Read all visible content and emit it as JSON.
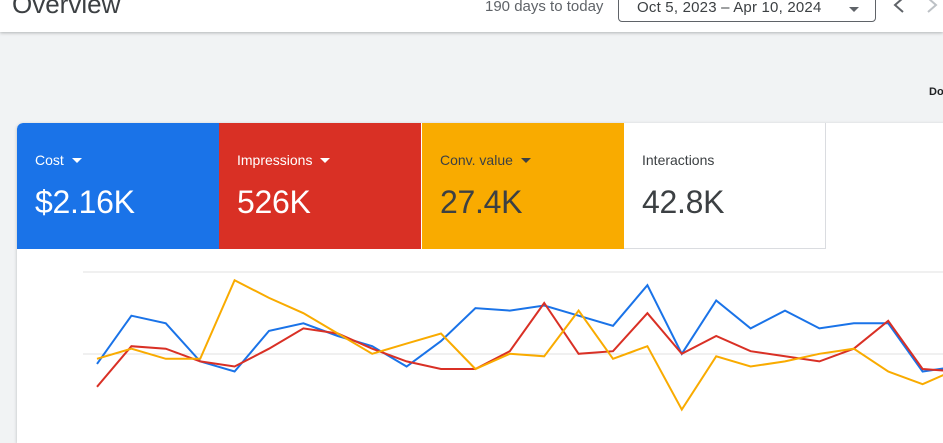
{
  "header": {
    "title": "Overview",
    "range_label": "190 days to today",
    "date_range": "Oct 5, 2023 – Apr 10, 2024",
    "download_label": "Do"
  },
  "metrics": [
    {
      "label": "Cost",
      "value": "$2.16K",
      "color": "#1a73e8",
      "has_dropdown": true
    },
    {
      "label": "Impressions",
      "value": "526K",
      "color": "#d93025",
      "has_dropdown": true
    },
    {
      "label": "Conv. value",
      "value": "27.4K",
      "color": "#f9ab00",
      "has_dropdown": true
    },
    {
      "label": "Interactions",
      "value": "42.8K",
      "color": "#ffffff",
      "has_dropdown": false
    }
  ],
  "chart_data": {
    "type": "line",
    "grid": true,
    "series": [
      {
        "color": "#1a73e8",
        "values": [
          58,
          77,
          74,
          59,
          55,
          71,
          74,
          69,
          65,
          57,
          67,
          80,
          79,
          81,
          77,
          73,
          89,
          62,
          83,
          72,
          79,
          72,
          74,
          74,
          55,
          57
        ]
      },
      {
        "color": "#d93025",
        "values": [
          49,
          65,
          64,
          59,
          57,
          64,
          72,
          70,
          64,
          59,
          56,
          56,
          63,
          82,
          62,
          63,
          78,
          62,
          69,
          63,
          61,
          59,
          64,
          75,
          56,
          55
        ]
      },
      {
        "color": "#f9ab00",
        "values": [
          60,
          64,
          60,
          60,
          91,
          84,
          78,
          70,
          62,
          66,
          70,
          56,
          62,
          61,
          79,
          60,
          65,
          40,
          61,
          57,
          59,
          62,
          64,
          55,
          50,
          56
        ]
      }
    ]
  }
}
